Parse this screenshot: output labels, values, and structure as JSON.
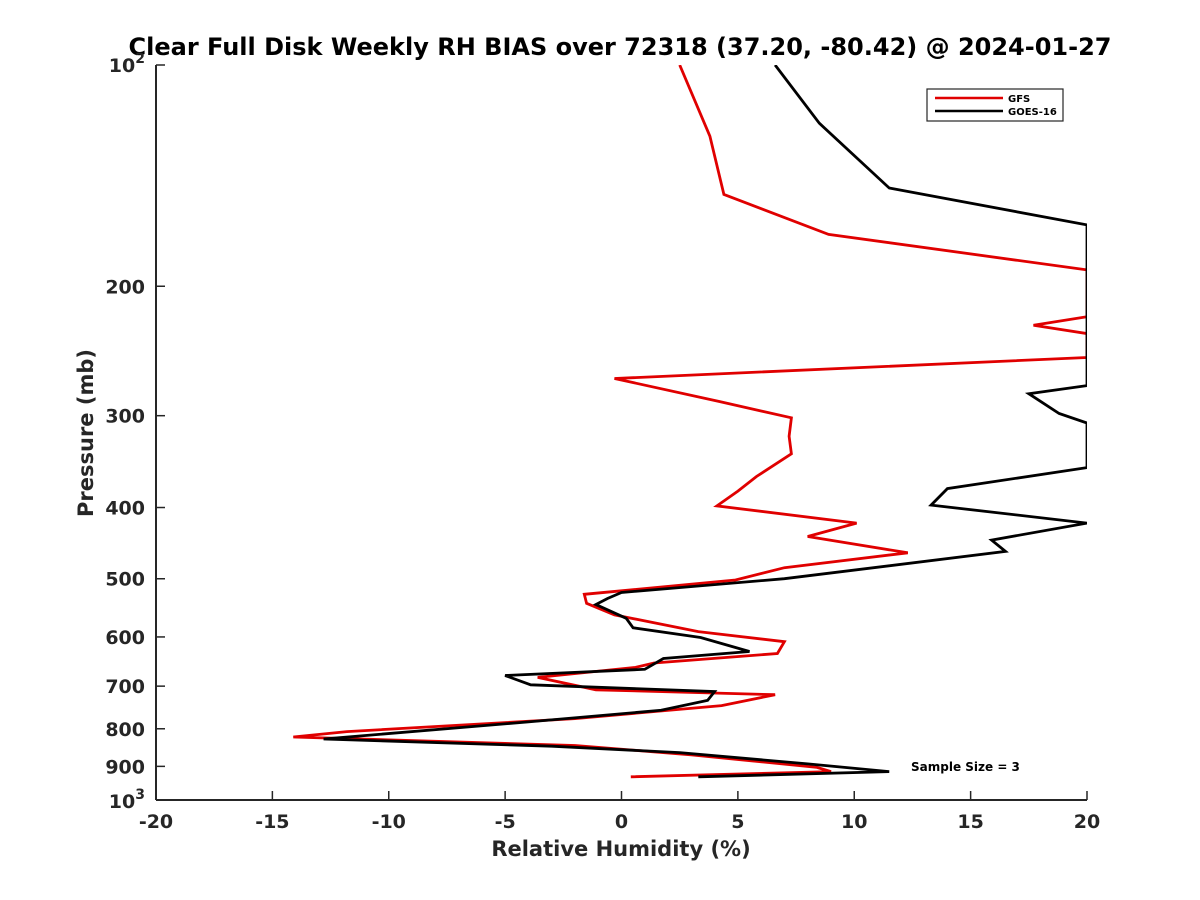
{
  "chart_data": {
    "type": "line",
    "title": "Clear Full Disk Weekly RH BIAS over 72318 (37.20, -80.42) @ 2024-01-27",
    "xlabel": "Relative Humidity (%)",
    "ylabel": "Pressure (mb)",
    "xlim": [
      -20,
      20
    ],
    "ylim": [
      100,
      1000
    ],
    "y_scale": "log",
    "y_reversed": true,
    "grid": false,
    "legend_position": "top-right",
    "x_ticks": [
      "-20",
      "-15",
      "-10",
      "-5",
      "0",
      "5",
      "10",
      "15",
      "20"
    ],
    "y_ticks_plain": [
      "200",
      "300",
      "400",
      "500",
      "600",
      "700",
      "800",
      "900"
    ],
    "y_tick_top": {
      "base": "10",
      "exp": "2"
    },
    "y_tick_bottom": {
      "base": "10",
      "exp": "3"
    },
    "annotation": "Sample Size = 3",
    "colors": {
      "GFS": "#e00000",
      "GOES-16": "#000000",
      "axis": "#262626"
    },
    "series": [
      {
        "name": "GFS",
        "points": [
          [
            2.5,
            100
          ],
          [
            3.8,
            125
          ],
          [
            4.4,
            150
          ],
          [
            8.9,
            170
          ],
          [
            20.0,
            190
          ],
          [
            20.0,
            220
          ],
          [
            17.7,
            226
          ],
          [
            20.0,
            232
          ],
          [
            20.0,
            250
          ],
          [
            -0.3,
            267
          ],
          [
            4.2,
            287
          ],
          [
            7.3,
            302
          ],
          [
            7.2,
            320
          ],
          [
            7.3,
            338
          ],
          [
            5.8,
            363
          ],
          [
            5.0,
            380
          ],
          [
            4.1,
            398
          ],
          [
            10.1,
            420
          ],
          [
            8.0,
            438
          ],
          [
            12.3,
            461
          ],
          [
            7.0,
            483
          ],
          [
            4.9,
            502
          ],
          [
            -1.6,
            525
          ],
          [
            -1.5,
            540
          ],
          [
            -0.3,
            560
          ],
          [
            3.3,
            590
          ],
          [
            7.0,
            609
          ],
          [
            6.7,
            632
          ],
          [
            1.4,
            651
          ],
          [
            0.6,
            660
          ],
          [
            -3.6,
            681
          ],
          [
            -1.1,
            708
          ],
          [
            6.6,
            719
          ],
          [
            4.3,
            744
          ],
          [
            -2.0,
            775
          ],
          [
            -11.8,
            807
          ],
          [
            -14.1,
            821
          ],
          [
            -2.0,
            843
          ],
          [
            3.0,
            868
          ],
          [
            8.4,
            903
          ],
          [
            9.0,
            915
          ],
          [
            0.4,
            930
          ]
        ]
      },
      {
        "name": "GOES-16",
        "points": [
          [
            6.6,
            100
          ],
          [
            8.5,
            120
          ],
          [
            11.5,
            147
          ],
          [
            20.0,
            165
          ],
          [
            20.0,
            273
          ],
          [
            17.5,
            280
          ],
          [
            18.8,
            298
          ],
          [
            20.0,
            307
          ],
          [
            20.0,
            353
          ],
          [
            14.0,
            377
          ],
          [
            13.3,
            397
          ],
          [
            20.0,
            420
          ],
          [
            15.9,
            443
          ],
          [
            16.5,
            459
          ],
          [
            7.0,
            500
          ],
          [
            0.0,
            522
          ],
          [
            -0.6,
            532
          ],
          [
            -1.1,
            542
          ],
          [
            0.2,
            566
          ],
          [
            0.5,
            583
          ],
          [
            3.4,
            601
          ],
          [
            5.5,
            628
          ],
          [
            1.8,
            642
          ],
          [
            1.0,
            664
          ],
          [
            -5.0,
            677
          ],
          [
            -3.9,
            697
          ],
          [
            4.0,
            712
          ],
          [
            3.7,
            732
          ],
          [
            1.7,
            755
          ],
          [
            -4.0,
            783
          ],
          [
            -12.8,
            826
          ],
          [
            -3.0,
            845
          ],
          [
            2.5,
            862
          ],
          [
            8.0,
            893
          ],
          [
            11.5,
            915
          ],
          [
            3.3,
            930
          ]
        ]
      }
    ]
  }
}
